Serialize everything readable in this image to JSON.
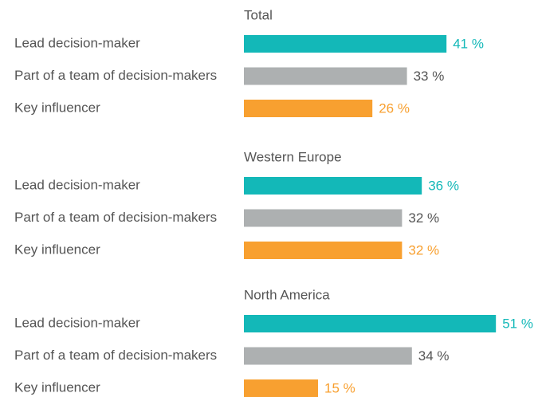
{
  "chart_data": [
    {
      "type": "bar",
      "orientation": "horizontal",
      "title": "Total",
      "categories": [
        "Lead decision-maker",
        "Part of a team of decision-makers",
        "Key influencer"
      ],
      "values": [
        41,
        33,
        26
      ],
      "value_labels": [
        "41 %",
        "33 %",
        "26 %"
      ],
      "colors": [
        "#13b8b8",
        "#adb0b1",
        "#f8a030"
      ],
      "value_label_colors": [
        "#13b8b8",
        "#555555",
        "#f8a030"
      ]
    },
    {
      "type": "bar",
      "orientation": "horizontal",
      "title": "Western Europe",
      "categories": [
        "Lead decision-maker",
        "Part of a team of decision-makers",
        "Key influencer"
      ],
      "values": [
        36,
        32,
        32
      ],
      "value_labels": [
        "36 %",
        "32 %",
        "32 %"
      ],
      "colors": [
        "#13b8b8",
        "#adb0b1",
        "#f8a030"
      ],
      "value_label_colors": [
        "#13b8b8",
        "#555555",
        "#f8a030"
      ]
    },
    {
      "type": "bar",
      "orientation": "horizontal",
      "title": "North America",
      "categories": [
        "Lead decision-maker",
        "Part of a team of decision-makers",
        "Key influencer"
      ],
      "values": [
        51,
        34,
        15
      ],
      "value_labels": [
        "51 %",
        "34 %",
        "15 %"
      ],
      "colors": [
        "#13b8b8",
        "#adb0b1",
        "#f8a030"
      ],
      "value_label_colors": [
        "#13b8b8",
        "#555555",
        "#f8a030"
      ]
    }
  ]
}
